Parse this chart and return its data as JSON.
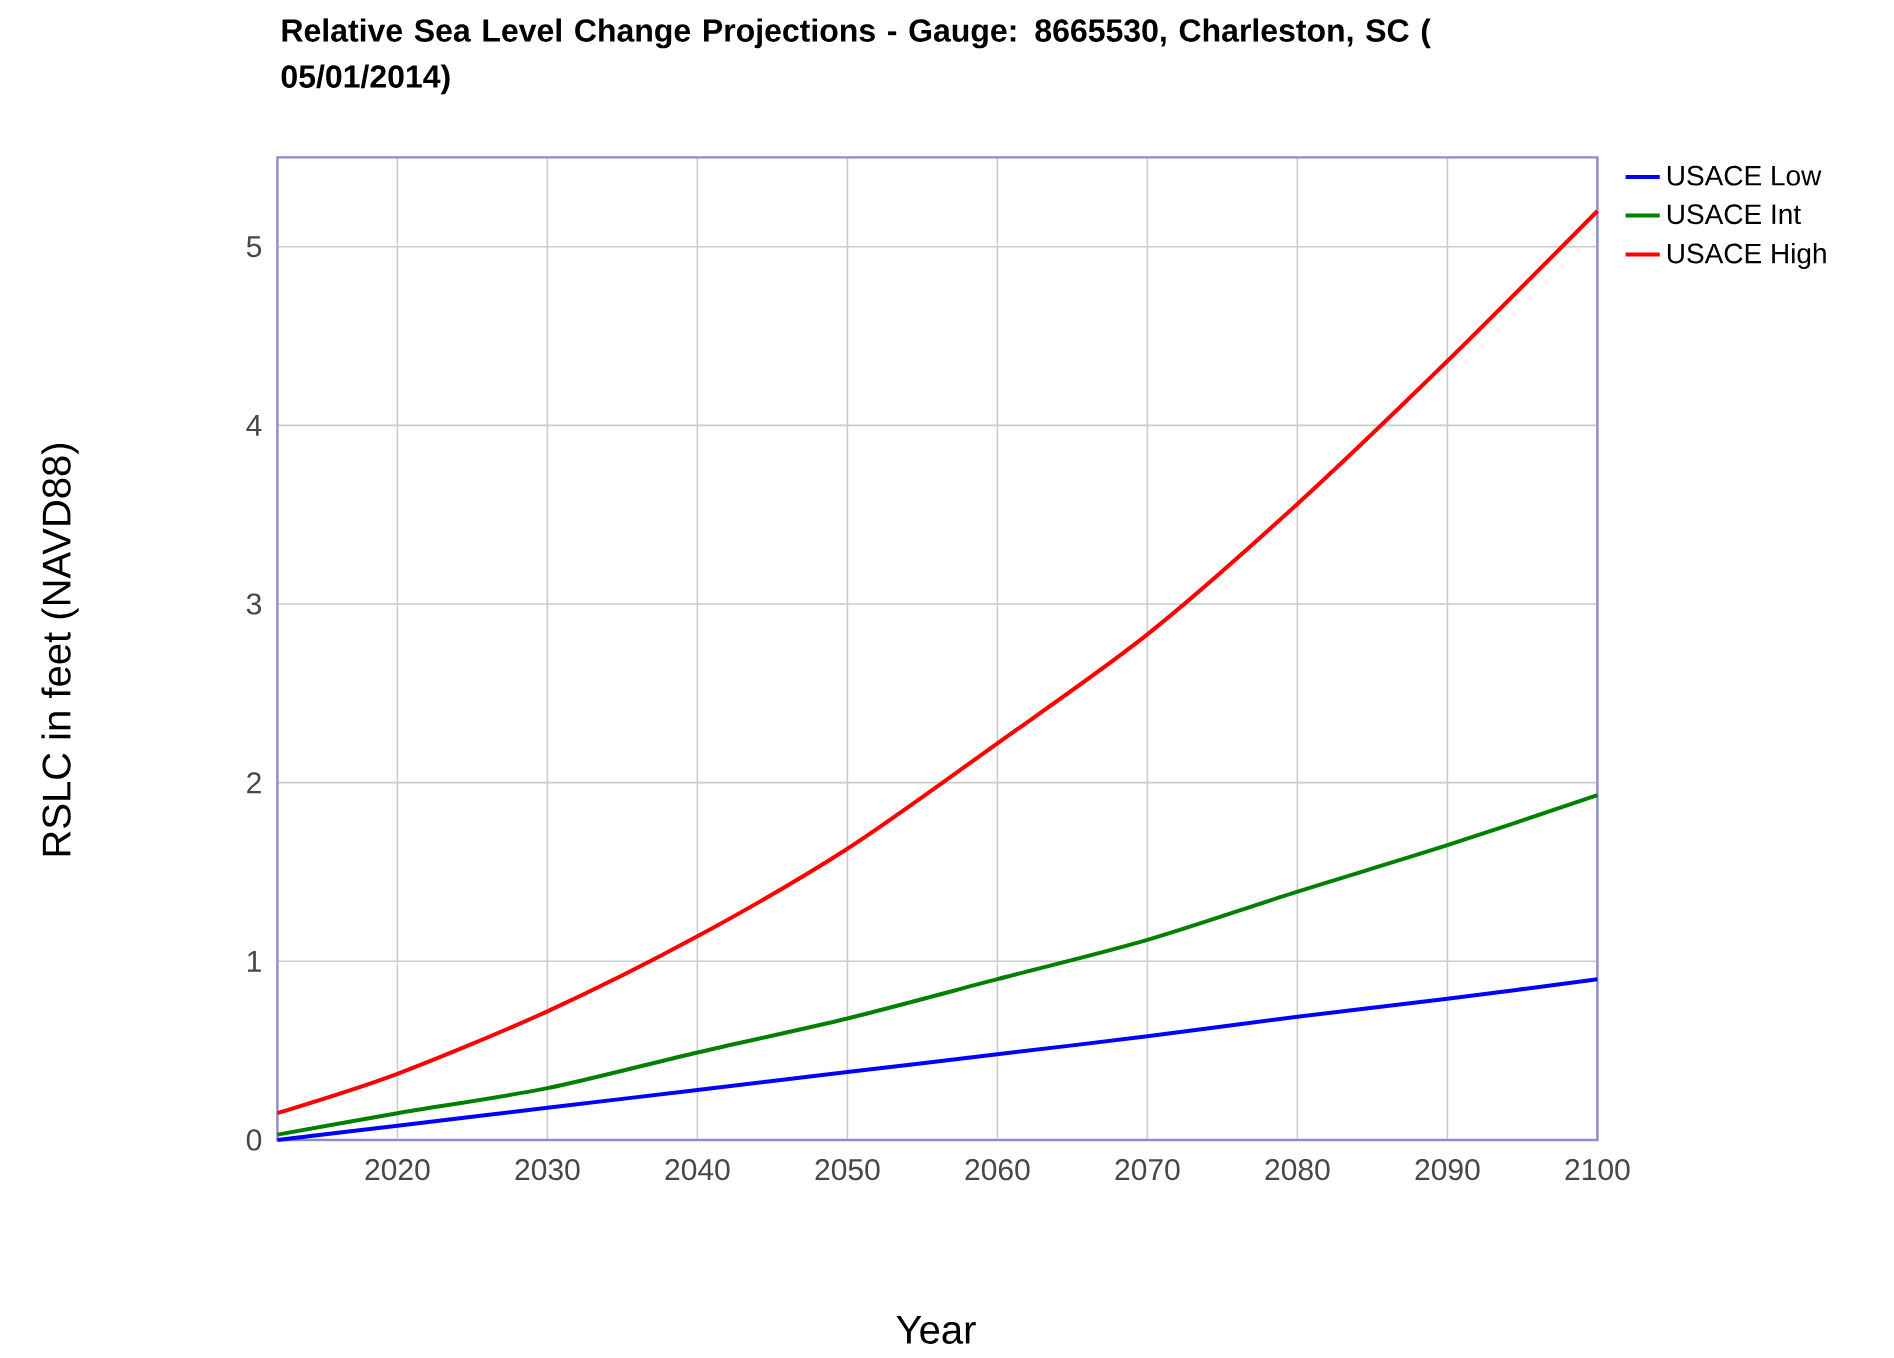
{
  "chart_data": {
    "type": "line",
    "title": "Relative Sea Level Change Projections - Gauge: 8665530, Charleston, SC ( 05/01/2014)",
    "xlabel": "Year",
    "ylabel": "RSLC in feet (NAVD88)",
    "x": [
      2012,
      2020,
      2030,
      2040,
      2050,
      2060,
      2070,
      2080,
      2090,
      2100
    ],
    "series": [
      {
        "name": "USACE Low",
        "color": "#0000ff",
        "values": [
          0,
          0.08,
          0.18,
          0.28,
          0.38,
          0.48,
          0.58,
          0.69,
          0.79,
          0.9
        ]
      },
      {
        "name": "USACE Int",
        "color": "#008000",
        "values": [
          0.03,
          0.15,
          0.29,
          0.49,
          0.68,
          0.9,
          1.12,
          1.39,
          1.65,
          1.93
        ]
      },
      {
        "name": "USACE High",
        "color": "#ff0000",
        "values": [
          0.15,
          0.37,
          0.72,
          1.14,
          1.63,
          2.22,
          2.83,
          3.56,
          4.36,
          5.2
        ]
      }
    ],
    "xlim": [
      2012,
      2100
    ],
    "ylim": [
      0,
      5.5
    ],
    "xticks": [
      2020,
      2030,
      2040,
      2050,
      2060,
      2070,
      2080,
      2090,
      2100
    ],
    "yticks": [
      0,
      1,
      2,
      3,
      4,
      5
    ],
    "grid": true,
    "legend": "top right"
  }
}
